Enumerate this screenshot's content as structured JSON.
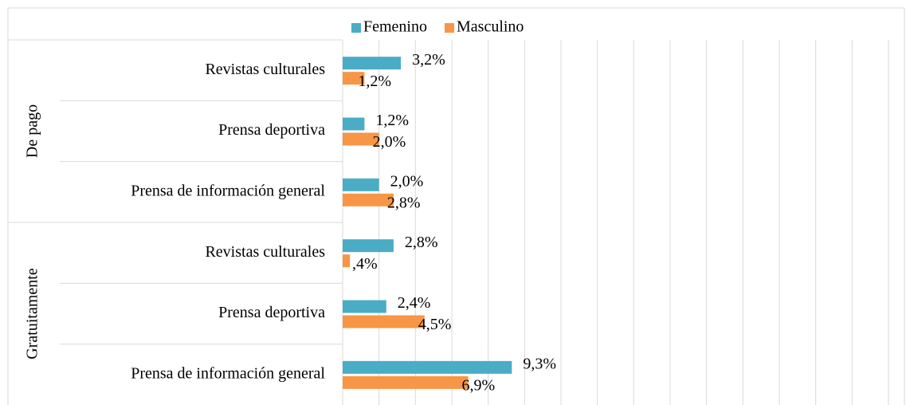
{
  "chart_data": {
    "type": "bar",
    "orientation": "horizontal",
    "groups": [
      {
        "name": "De pago",
        "categories": [
          "Revistas culturales",
          "Prensa deportiva",
          "Prensa de información general"
        ]
      },
      {
        "name": "Gratuitamente",
        "categories": [
          "Revistas culturales",
          "Prensa deportiva",
          "Prensa de información general"
        ]
      }
    ],
    "series": [
      {
        "name": "Femenino",
        "color": "#4bacc6",
        "values": [
          3.2,
          1.2,
          2.0,
          2.8,
          2.4,
          9.3
        ],
        "value_labels": [
          "3,2%",
          "1,2%",
          "2,0%",
          "2,8%",
          "2,4%",
          "9,3%"
        ]
      },
      {
        "name": "Masculino",
        "color": "#f79646",
        "values": [
          1.2,
          2.0,
          2.8,
          0.4,
          4.5,
          6.9
        ],
        "value_labels": [
          "1,2%",
          "2,0%",
          "2,8%",
          ",4%",
          "4,5%",
          "6,9%"
        ]
      }
    ],
    "xlim": [
      0,
      30
    ],
    "xticks": [
      0,
      2,
      4,
      6,
      8,
      10,
      12,
      14,
      16,
      18,
      20,
      22,
      24,
      26,
      28,
      30
    ],
    "grid": true,
    "legend": "top"
  }
}
